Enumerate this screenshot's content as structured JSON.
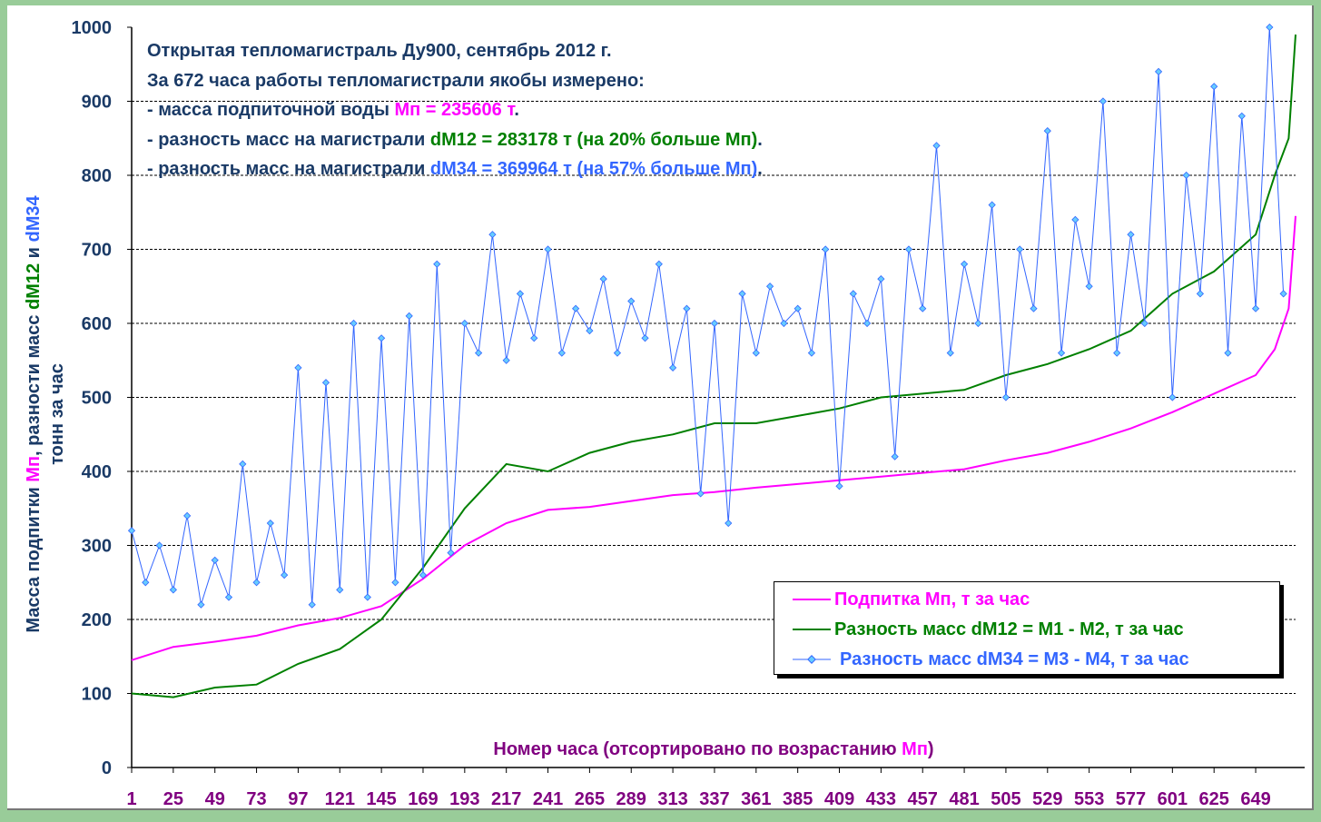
{
  "chart_data": {
    "type": "line",
    "annotation": {
      "line1": "Открытая тепломагистраль Ду900, сентябрь 2012 г.",
      "line2": "За 672 часа работы тепломагистрали якобы измерено:",
      "line3_prefix": "- масса подпиточной воды ",
      "line3_value": "Мп = 235606 т",
      "line3_suffix": ".",
      "line4_prefix": "- разность масс на магистрали ",
      "line4_value": "dM12 = 283178 т (на 20% больше Мп)",
      "line4_suffix": ".",
      "line5_prefix": "- разность масс на магистрали ",
      "line5_value": "dM34 = 369964 т (на 57% больше Мп)",
      "line5_suffix": "."
    },
    "ylabel_line1_a": "Масса подпитки ",
    "ylabel_line1_b": "Мп",
    "ylabel_line1_c": ", разности масс ",
    "ylabel_line1_d": "dM12",
    "ylabel_line1_e": " и ",
    "ylabel_line1_f": "dM34",
    "ylabel_line2": "тонн за час",
    "xlabel_a": "Номер часа (отсортировано по возрастанию ",
    "xlabel_b": "Мп",
    "xlabel_c": ")",
    "ylim": [
      0,
      1000
    ],
    "xlim": [
      1,
      672
    ],
    "yticks": [
      "0",
      "100",
      "200",
      "300",
      "400",
      "500",
      "600",
      "700",
      "800",
      "900",
      "1000"
    ],
    "xticks": [
      "1",
      "25",
      "49",
      "73",
      "97",
      "121",
      "145",
      "169",
      "193",
      "217",
      "241",
      "265",
      "289",
      "313",
      "337",
      "361",
      "385",
      "409",
      "433",
      "457",
      "481",
      "505",
      "529",
      "553",
      "577",
      "601",
      "625",
      "649"
    ],
    "grid": "horizontal dashed",
    "legend_position": "bottom-right",
    "colors": {
      "mp": "#ff00ff",
      "dm12": "#008000",
      "dm34": "#3366ff",
      "text": "#1a3a66",
      "xtext": "#800080"
    },
    "series": [
      {
        "name": "Подпитка Мп, т за час",
        "key": "mp",
        "x": [
          1,
          25,
          49,
          73,
          97,
          121,
          145,
          169,
          193,
          217,
          241,
          265,
          289,
          313,
          337,
          361,
          385,
          409,
          433,
          457,
          481,
          505,
          529,
          553,
          577,
          601,
          625,
          649,
          660,
          668,
          672
        ],
        "y": [
          145,
          163,
          170,
          178,
          192,
          202,
          218,
          255,
          300,
          330,
          348,
          352,
          360,
          368,
          372,
          378,
          383,
          388,
          393,
          398,
          403,
          415,
          425,
          440,
          458,
          480,
          505,
          530,
          565,
          620,
          745
        ]
      },
      {
        "name": "Разность масс dM12 = M1 - M2, т за час",
        "key": "dm12",
        "x": [
          1,
          25,
          49,
          73,
          97,
          121,
          145,
          169,
          193,
          217,
          241,
          265,
          289,
          313,
          337,
          361,
          385,
          409,
          433,
          457,
          481,
          505,
          529,
          553,
          577,
          601,
          625,
          649,
          660,
          668,
          672
        ],
        "y": [
          100,
          95,
          108,
          112,
          140,
          160,
          200,
          270,
          350,
          410,
          400,
          425,
          440,
          450,
          465,
          465,
          475,
          485,
          500,
          505,
          510,
          530,
          545,
          565,
          590,
          640,
          670,
          720,
          800,
          850,
          990
        ]
      },
      {
        "name": "Разность масс dM34 = M3 - M4, т за час",
        "key": "dm34",
        "step": 8,
        "x_start": 1,
        "y": [
          320,
          250,
          300,
          240,
          340,
          220,
          280,
          230,
          410,
          250,
          330,
          260,
          540,
          220,
          520,
          240,
          600,
          230,
          580,
          250,
          610,
          260,
          680,
          290,
          600,
          560,
          720,
          550,
          640,
          580,
          700,
          560,
          620,
          590,
          660,
          560,
          630,
          580,
          680,
          540,
          620,
          370,
          600,
          330,
          640,
          560,
          650,
          600,
          620,
          560,
          700,
          380,
          640,
          600,
          660,
          420,
          700,
          620,
          840,
          560,
          680,
          600,
          760,
          500,
          700,
          620,
          860,
          560,
          740,
          650,
          900,
          560,
          720,
          600,
          940,
          500,
          800,
          640,
          920,
          560,
          880,
          620,
          1000,
          640
        ]
      }
    ]
  }
}
